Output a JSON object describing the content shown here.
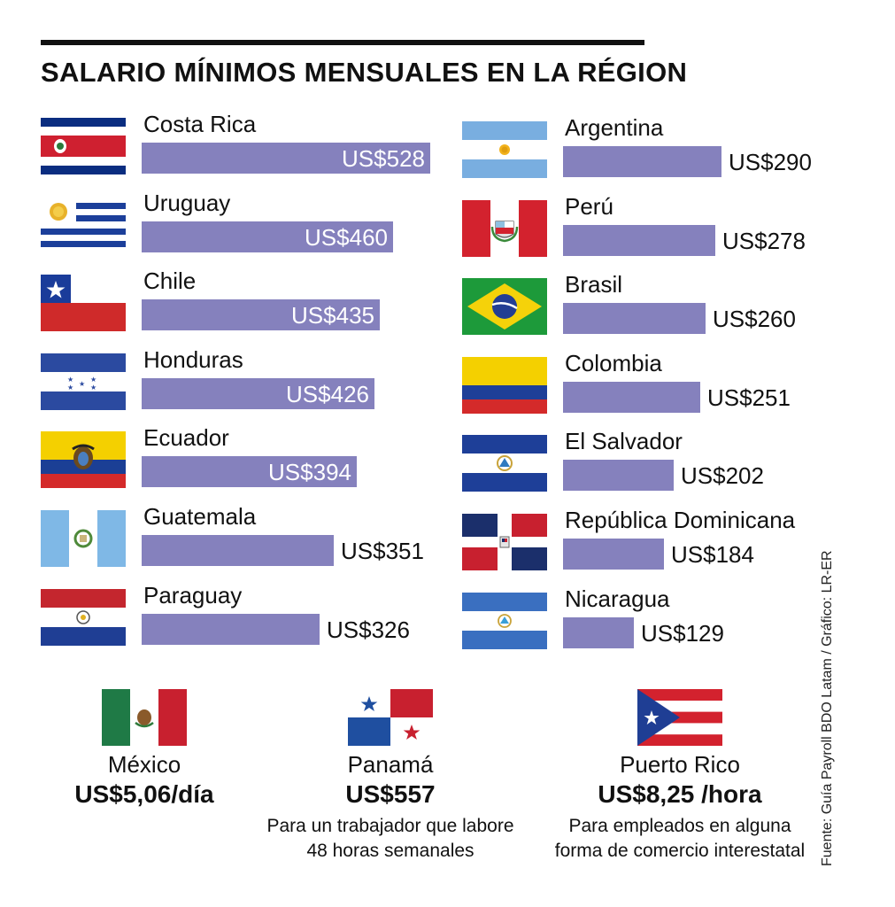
{
  "title": "SALARIO MÍNIMOS MENSUALES EN LA RÉGION",
  "chart_data": {
    "type": "bar",
    "title": "SALARIO MÍNIMOS MENSUALES EN LA RÉGION",
    "unit": "US$",
    "max_value": 528,
    "left_column": [
      {
        "country": "Costa Rica",
        "value": 528,
        "label": "US$528",
        "flag": "costa-rica-flag"
      },
      {
        "country": "Uruguay",
        "value": 460,
        "label": "US$460",
        "flag": "uruguay-flag"
      },
      {
        "country": "Chile",
        "value": 435,
        "label": "US$435",
        "flag": "chile-flag"
      },
      {
        "country": "Honduras",
        "value": 426,
        "label": "US$426",
        "flag": "honduras-flag"
      },
      {
        "country": "Ecuador",
        "value": 394,
        "label": "US$394",
        "flag": "ecuador-flag"
      },
      {
        "country": "Guatemala",
        "value": 351,
        "label": "US$351",
        "flag": "guatemala-flag"
      },
      {
        "country": "Paraguay",
        "value": 326,
        "label": "US$326",
        "flag": "paraguay-flag"
      }
    ],
    "right_column": [
      {
        "country": "Argentina",
        "value": 290,
        "label": "US$290",
        "flag": "argentina-flag"
      },
      {
        "country": "Perú",
        "value": 278,
        "label": "US$278",
        "flag": "peru-flag"
      },
      {
        "country": "Brasil",
        "value": 260,
        "label": "US$260",
        "flag": "brazil-flag"
      },
      {
        "country": "Colombia",
        "value": 251,
        "label": "US$251",
        "flag": "colombia-flag"
      },
      {
        "country": "El Salvador",
        "value": 202,
        "label": "US$202",
        "flag": "el-salvador-flag"
      },
      {
        "country": "República Dominicana",
        "value": 184,
        "label": "US$184",
        "flag": "dominican-republic-flag"
      },
      {
        "country": "Nicaragua",
        "value": 129,
        "label": "US$129",
        "flag": "nicaragua-flag"
      }
    ],
    "bar_color": "#8581bd"
  },
  "extras": [
    {
      "country": "México",
      "value": "US$5,06/día",
      "note": [],
      "flag": "mexico-flag"
    },
    {
      "country": "Panamá",
      "value": "US$557",
      "note": [
        "Para un trabajador que labore",
        "48 horas semanales"
      ],
      "flag": "panama-flag"
    },
    {
      "country": "Puerto Rico",
      "value": "US$8,25 /hora",
      "note": [
        "Para empleados en alguna",
        "forma de comercio interestatal"
      ],
      "flag": "puerto-rico-flag"
    }
  ],
  "source": "Fuente: Guía Payroll BDO Latam /  Gráfico: LR-ER"
}
